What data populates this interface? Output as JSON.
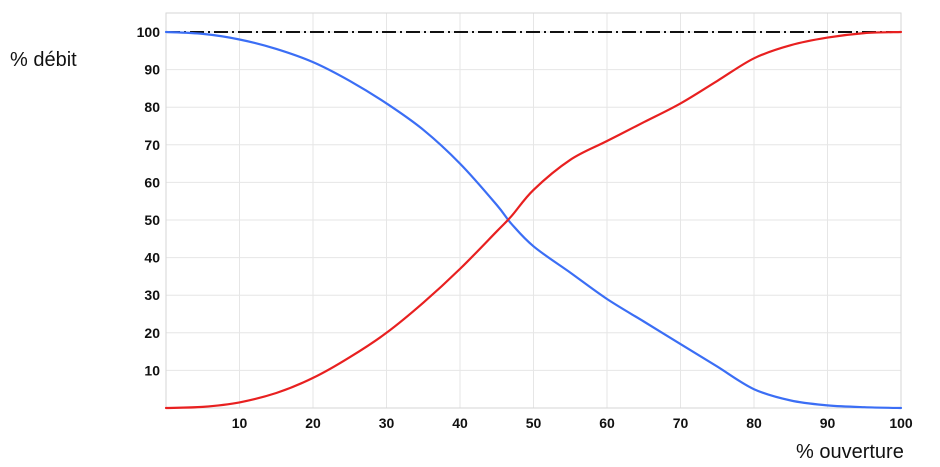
{
  "chart_data": {
    "type": "line",
    "ylabel": "% débit",
    "xlabel": "% ouverture",
    "xlim": [
      0,
      100
    ],
    "ylim": [
      0,
      100
    ],
    "xticks": [
      10,
      20,
      30,
      40,
      50,
      60,
      70,
      80,
      90,
      100
    ],
    "yticks": [
      10,
      20,
      30,
      40,
      50,
      60,
      70,
      80,
      90,
      100
    ],
    "grid": true,
    "reference_line": {
      "y": 100,
      "style": "dash-dot",
      "color": "#111111"
    },
    "series": [
      {
        "color": "#3b6ef5",
        "x": [
          0,
          5,
          10,
          15,
          20,
          25,
          30,
          35,
          40,
          45,
          47,
          50,
          55,
          60,
          65,
          70,
          75,
          80,
          85,
          90,
          95,
          100
        ],
        "y": [
          100,
          99.5,
          98,
          95.5,
          92,
          87,
          81,
          74,
          65,
          54,
          49,
          43,
          36,
          29,
          23,
          17,
          11,
          5,
          2,
          0.7,
          0.2,
          0
        ]
      },
      {
        "color": "#e82020",
        "x": [
          0,
          5,
          10,
          15,
          20,
          25,
          30,
          35,
          40,
          45,
          47,
          50,
          55,
          60,
          65,
          70,
          75,
          80,
          85,
          90,
          95,
          100
        ],
        "y": [
          0,
          0.3,
          1.5,
          4,
          8,
          13.5,
          20,
          28,
          37,
          47,
          51,
          58,
          66,
          71,
          76,
          81,
          87,
          93,
          96.5,
          98.5,
          99.7,
          100
        ]
      }
    ]
  }
}
